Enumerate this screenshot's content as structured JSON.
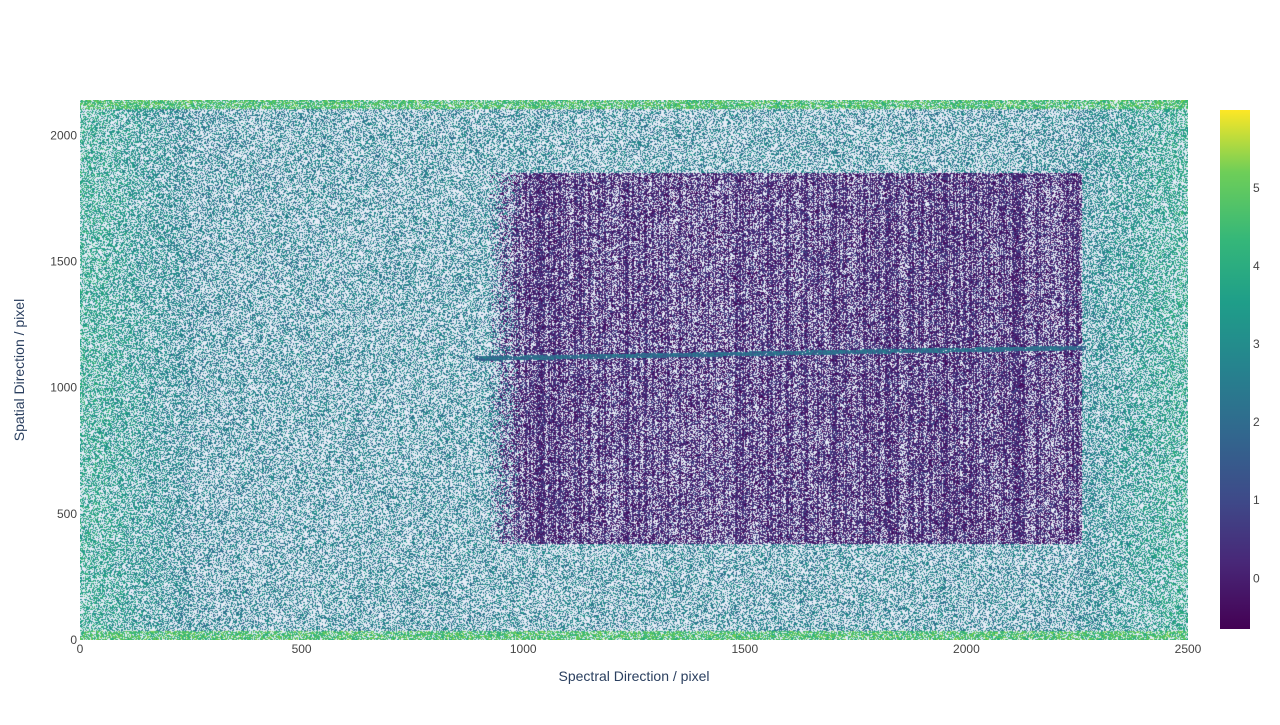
{
  "chart_data": {
    "type": "heatmap",
    "title": "",
    "xlabel": "Spectral Direction / pixel",
    "ylabel": "Spatial Direction / pixel",
    "xlim": [
      0,
      2500
    ],
    "ylim": [
      0,
      2140
    ],
    "x_ticks": [
      0,
      500,
      1000,
      1500,
      2000,
      2500
    ],
    "y_ticks": [
      0,
      500,
      1000,
      1500,
      2000
    ],
    "colorbar": {
      "colorscale": "viridis",
      "range": [
        -0.65,
        6.0
      ],
      "ticks": [
        0,
        1,
        2,
        3,
        4,
        5
      ]
    },
    "grid": false,
    "background_noise_level": 2.2,
    "edge_noise_level": 3.2,
    "border_rows_level": 4.0,
    "illuminated_region": {
      "x": [
        1000,
        2260
      ],
      "y": [
        380,
        1850
      ],
      "level": 0.1
    },
    "trace": {
      "x_start": 890,
      "x_end": 2270,
      "y_start": 1115,
      "y_end": 1158,
      "level": 1.7
    },
    "colors": {
      "missing": "#e5ecf6",
      "axis_text": "#444444",
      "label_text": "#2a3f5f"
    }
  }
}
